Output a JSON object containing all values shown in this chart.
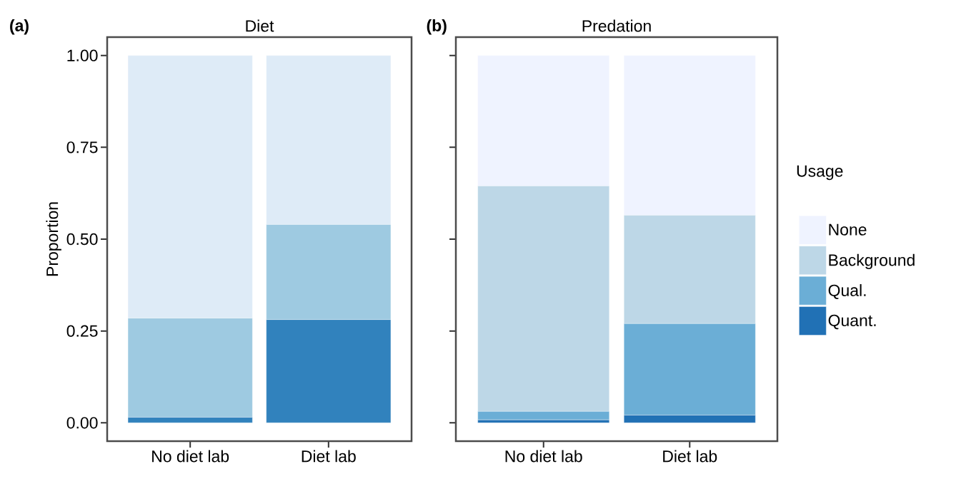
{
  "chart_data": [
    {
      "type": "bar",
      "stacked": true,
      "title": "Diet",
      "ylabel": "Proportion",
      "annotations": [
        "**(a)**"
      ],
      "categories": [
        "No diet lab",
        "Diet lab"
      ],
      "series": [
        {
          "color": "#3182bd",
          "values": [
            0.015,
            0.281
          ]
        },
        {
          "color": "#9ecae1",
          "values": [
            0.27,
            0.259
          ]
        },
        {
          "color": "#deebf7",
          "values": [
            0.715,
            0.46
          ]
        }
      ],
      "ylim": [
        -0.05,
        1.05
      ],
      "yticks": [
        {
          "value": 0,
          "label": "0.00"
        },
        {
          "value": 0.25,
          "label": "0.25"
        },
        {
          "value": 0.5,
          "label": "0.50"
        },
        {
          "value": 0.75,
          "label": "0.75"
        },
        {
          "value": 1,
          "label": "1.00"
        }
      ]
    },
    {
      "type": "bar",
      "stacked": true,
      "title": "Predation",
      "annotations": [
        "**(b)**"
      ],
      "legend": "right",
      "legend_title": "Usage",
      "tick_labels": "x",
      "categories": [
        "No diet lab",
        "Diet lab"
      ],
      "series": [
        {
          "name": "Quant.",
          "color": "#2171b5",
          "values": [
            0.008,
            0.021
          ]
        },
        {
          "name": "Qual.",
          "color": "#6baed6",
          "values": [
            0.023,
            0.249
          ]
        },
        {
          "name": "Background",
          "color": "#bdd7e7",
          "values": [
            0.614,
            0.295
          ]
        },
        {
          "name": "None",
          "color": "#eff3ff",
          "values": [
            0.355,
            0.435
          ]
        }
      ],
      "ylim": [
        -0.05,
        1.05
      ],
      "yticks": [
        0,
        0.25,
        0.5,
        0.75,
        1
      ]
    }
  ]
}
